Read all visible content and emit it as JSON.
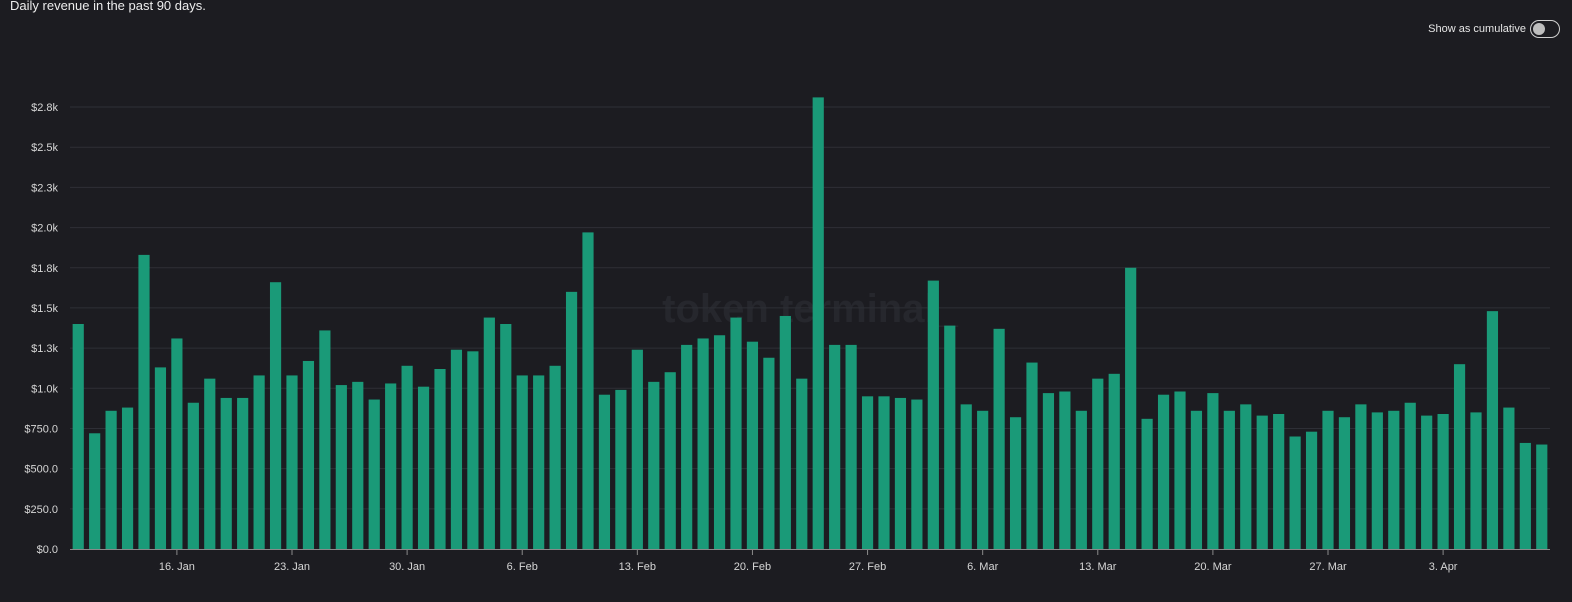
{
  "header": {
    "subtitle": "Daily revenue in the past 90 days.",
    "toggle_label": "Show as cumulative",
    "toggle_on": false
  },
  "watermark": "token terminal_",
  "colors": {
    "background": "#1c1c21",
    "bar": "#1a9a78",
    "grid": "#2e2f36",
    "axis": "#8a8a8a"
  },
  "chart_data": {
    "type": "bar",
    "title": "",
    "xlabel": "",
    "ylabel": "",
    "ylim": [
      0,
      2800
    ],
    "yticks": [
      0,
      250,
      500,
      750,
      1000,
      1250,
      1500,
      1750,
      2000,
      2250,
      2500,
      2750
    ],
    "ytick_labels": [
      "$0.0",
      "$250.0",
      "$500.0",
      "$750.0",
      "$1.0k",
      "$1.3k",
      "$1.5k",
      "$1.8k",
      "$2.0k",
      "$2.3k",
      "$2.5k",
      "$2.8k"
    ],
    "x_tick_labels": [
      {
        "label": "16. Jan",
        "index": 6.5
      },
      {
        "label": "23. Jan",
        "index": 13.5
      },
      {
        "label": "30. Jan",
        "index": 20.5
      },
      {
        "label": "6. Feb",
        "index": 27.5
      },
      {
        "label": "13. Feb",
        "index": 34.5
      },
      {
        "label": "20. Feb",
        "index": 41.5
      },
      {
        "label": "27. Feb",
        "index": 48.5
      },
      {
        "label": "6. Mar",
        "index": 55.5
      },
      {
        "label": "13. Mar",
        "index": 62.5
      },
      {
        "label": "20. Mar",
        "index": 69.5
      },
      {
        "label": "27. Mar",
        "index": 76.5
      },
      {
        "label": "3. Apr",
        "index": 83.5
      }
    ],
    "grid": true,
    "legend": "none",
    "values": [
      1400,
      720,
      860,
      880,
      1830,
      1130,
      1310,
      910,
      1060,
      940,
      940,
      1080,
      1660,
      1080,
      1170,
      1360,
      1020,
      1040,
      930,
      1030,
      1140,
      1010,
      1120,
      1240,
      1230,
      1440,
      1400,
      1080,
      1080,
      1140,
      1600,
      1970,
      960,
      990,
      1240,
      1040,
      1100,
      1270,
      1310,
      1330,
      1440,
      1290,
      1190,
      1450,
      1060,
      2810,
      1270,
      1270,
      950,
      950,
      940,
      930,
      1670,
      1390,
      900,
      860,
      1370,
      820,
      1160,
      970,
      980,
      860,
      1060,
      1090,
      1750,
      810,
      960,
      980,
      860,
      970,
      860,
      900,
      830,
      840,
      700,
      730,
      860,
      820,
      900,
      850,
      860,
      910,
      830,
      840,
      1150,
      850,
      1480,
      880,
      660,
      650
    ]
  }
}
